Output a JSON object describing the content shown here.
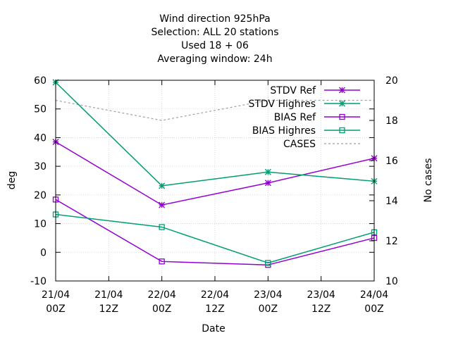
{
  "chart_data": {
    "type": "line",
    "title_lines": [
      "Wind direction 925hPa",
      "Selection: ALL     20 stations",
      "Used  18 + 06",
      "Averaging window: 24h"
    ],
    "xlabel": "Date",
    "ylabel": "deg",
    "y2label": "No cases",
    "x_ticks": [
      {
        "line1": "21/04",
        "line2": "00Z"
      },
      {
        "line1": "21/04",
        "line2": "12Z"
      },
      {
        "line1": "22/04",
        "line2": "00Z"
      },
      {
        "line1": "22/04",
        "line2": "12Z"
      },
      {
        "line1": "23/04",
        "line2": "00Z"
      },
      {
        "line1": "23/04",
        "line2": "12Z"
      },
      {
        "line1": "24/04",
        "line2": "00Z"
      }
    ],
    "ylim": [
      -10,
      60
    ],
    "y_ticks": [
      "-10",
      "0",
      "10",
      "20",
      "30",
      "40",
      "50",
      "60"
    ],
    "y2lim": [
      10,
      20
    ],
    "y2_ticks": [
      "10",
      "12",
      "14",
      "16",
      "18",
      "20"
    ],
    "x": [
      0,
      24,
      48,
      72
    ],
    "series": [
      {
        "name": "STDV Ref",
        "axis": "y",
        "color": "#9400d3",
        "marker": "star",
        "values": [
          38.5,
          16.5,
          24.2,
          32.8
        ]
      },
      {
        "name": "STDV Highres",
        "axis": "y",
        "color": "#009e73",
        "marker": "star",
        "values": [
          59.3,
          23.2,
          28.0,
          24.8
        ]
      },
      {
        "name": "BIAS Ref",
        "axis": "y",
        "color": "#9400d3",
        "marker": "square",
        "values": [
          18.4,
          -3.2,
          -4.4,
          5.0
        ]
      },
      {
        "name": "BIAS Highres",
        "axis": "y",
        "color": "#009e73",
        "marker": "square",
        "values": [
          13.2,
          8.8,
          -3.7,
          7.0
        ]
      },
      {
        "name": "CASES",
        "axis": "y2",
        "color": "#a0a0a0",
        "marker": "none",
        "dashed": true,
        "values": [
          19,
          18,
          19,
          19
        ]
      }
    ]
  }
}
